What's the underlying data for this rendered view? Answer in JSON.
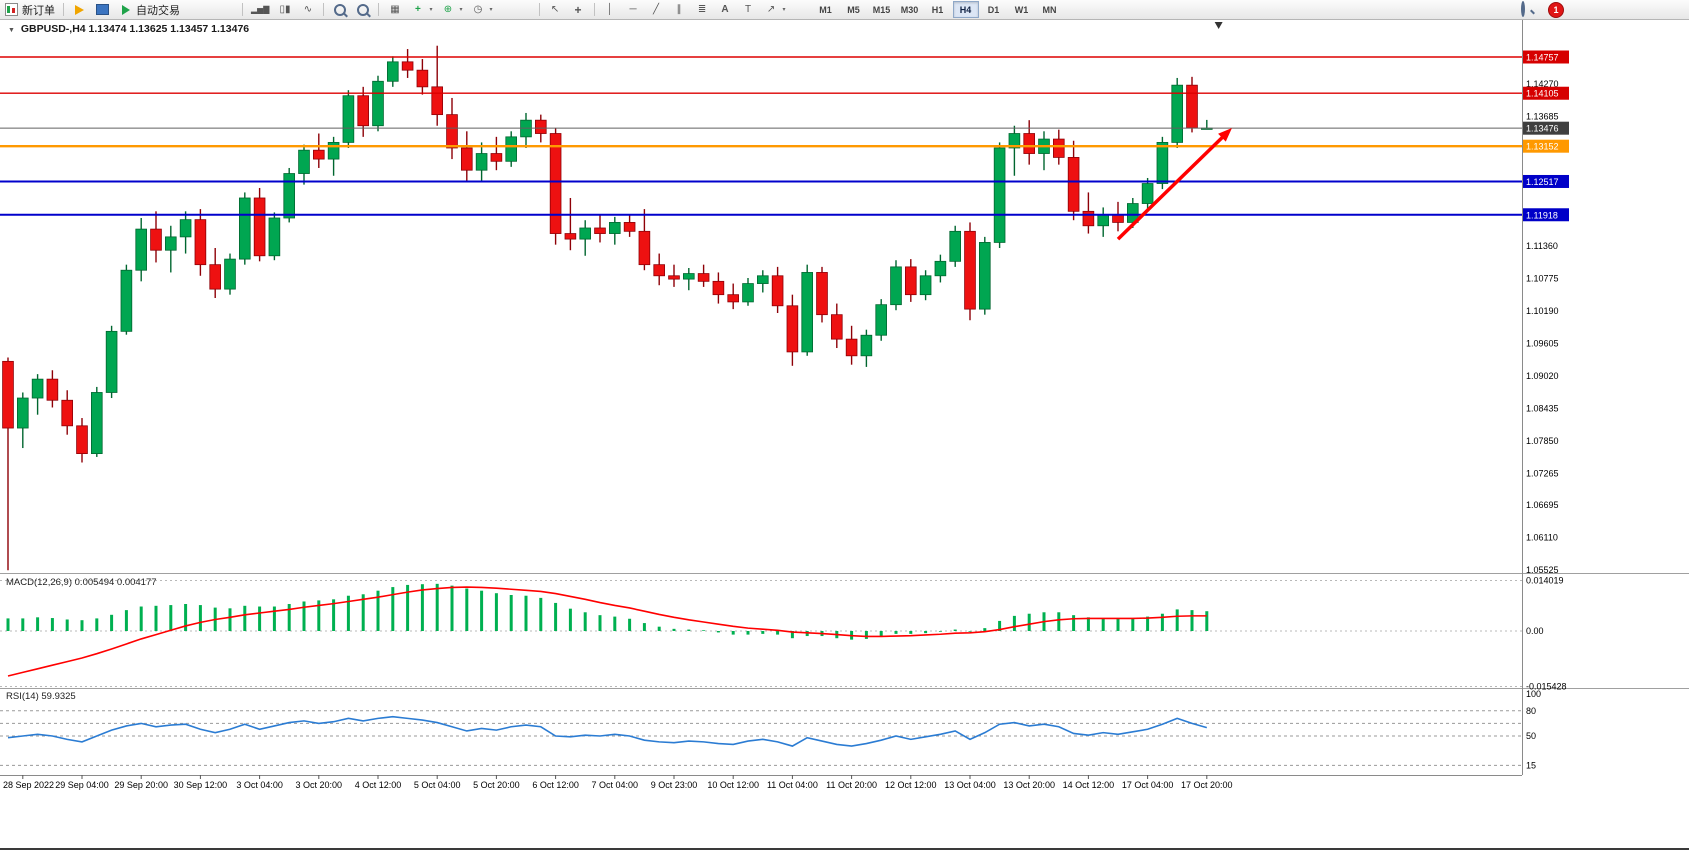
{
  "toolbar": {
    "new_order": "新订单",
    "auto_trading": "自动交易",
    "timeframes": [
      "M1",
      "M5",
      "M15",
      "M30",
      "H1",
      "H4",
      "D1",
      "W1",
      "MN"
    ],
    "active_timeframe": "H4",
    "notification_count": "1",
    "glyphs": {
      "bars": "▂▅▇",
      "candles": "▯▮",
      "line_chart": "∿",
      "tile": "▦",
      "indicator_add": "+",
      "objects_add": "⊕",
      "clock": "◷",
      "cursor": "↖",
      "crosshair": "+",
      "vline": "│",
      "hline": "─",
      "trendline": "╱",
      "channel": "∥",
      "fibonacci": "≣",
      "text_tool": "A",
      "label_tool": "T",
      "arrows_tool": "↗",
      "caret": "▾",
      "collapse": "▼"
    }
  },
  "chart": {
    "symbol_title": "GBPUSD-,H4",
    "ohlc": "1.13474 1.13625 1.13457 1.13476"
  },
  "macd_panel": {
    "label": "MACD(12,26,9)",
    "value_main": "0.005494",
    "value_signal": "0.004177"
  },
  "rsi_panel": {
    "label": "RSI(14)",
    "value": "59.9325"
  },
  "chart_data": {
    "type": "candlestick",
    "symbol": "GBPUSD",
    "timeframe": "H4",
    "colors": {
      "up": "#00a651",
      "up_border": "#00662f",
      "down": "#ee1111",
      "down_border": "#8e0007",
      "macd_hist": "#00b050",
      "macd_signal": "#ff0000",
      "rsi_line": "#2b7cd3",
      "arrow": "#ff0000",
      "badge_red": "#d60000",
      "badge_black": "#3f3f3f",
      "badge_orange": "#ff9900",
      "badge_blue": "#0000c8"
    },
    "price_axis": {
      "ticks": [
        1.1427,
        1.13685,
        1.1136,
        1.10775,
        1.1019,
        1.09605,
        1.0902,
        1.08435,
        1.0785,
        1.07265,
        1.06695,
        1.0611,
        1.05525
      ],
      "badges": [
        {
          "price": 1.14757,
          "color": "#d60000"
        },
        {
          "price": 1.14105,
          "color": "#d60000"
        },
        {
          "price": 1.13476,
          "color": "#3f3f3f"
        },
        {
          "price": 1.13152,
          "color": "#ff9900"
        },
        {
          "price": 1.12517,
          "color": "#0000c8"
        },
        {
          "price": 1.11918,
          "color": "#0000c8"
        }
      ]
    },
    "hlines": [
      {
        "price": 1.14757,
        "color": "#dd0000",
        "width": 1.4
      },
      {
        "price": 1.14105,
        "color": "#dd0000",
        "width": 1.4
      },
      {
        "price": 1.13476,
        "color": "#606060",
        "width": 1
      },
      {
        "price": 1.13152,
        "color": "#ff9900",
        "width": 2.4
      },
      {
        "price": 1.12517,
        "color": "#0000cc",
        "width": 2
      },
      {
        "price": 1.11918,
        "color": "#0000cc",
        "width": 2
      }
    ],
    "time_labels": [
      {
        "bar": 1,
        "text": "28 Sep 2022"
      },
      {
        "bar": 5,
        "text": "29 Sep 04:00"
      },
      {
        "bar": 9,
        "text": "29 Sep 20:00"
      },
      {
        "bar": 13,
        "text": "30 Sep 12:00"
      },
      {
        "bar": 17,
        "text": "3 Oct 04:00"
      },
      {
        "bar": 21,
        "text": "3 Oct 20:00"
      },
      {
        "bar": 25,
        "text": "4 Oct 12:00"
      },
      {
        "bar": 29,
        "text": "5 Oct 04:00"
      },
      {
        "bar": 33,
        "text": "5 Oct 20:00"
      },
      {
        "bar": 37,
        "text": "6 Oct 12:00"
      },
      {
        "bar": 41,
        "text": "7 Oct 04:00"
      },
      {
        "bar": 45,
        "text": "9 Oct 23:00"
      },
      {
        "bar": 49,
        "text": "10 Oct 12:00"
      },
      {
        "bar": 53,
        "text": "11 Oct 04:00"
      },
      {
        "bar": 57,
        "text": "11 Oct 20:00"
      },
      {
        "bar": 61,
        "text": "12 Oct 12:00"
      },
      {
        "bar": 65,
        "text": "13 Oct 04:00"
      },
      {
        "bar": 69,
        "text": "13 Oct 20:00"
      },
      {
        "bar": 73,
        "text": "14 Oct 12:00"
      },
      {
        "bar": 77,
        "text": "17 Oct 04:00"
      },
      {
        "bar": 81,
        "text": "17 Oct 20:00"
      }
    ],
    "candles": [
      [
        1.0928,
        1.0935,
        1.0552,
        1.0808
      ],
      [
        1.0808,
        1.0872,
        1.0772,
        1.0862
      ],
      [
        1.0862,
        1.0905,
        1.0832,
        1.0896
      ],
      [
        1.0896,
        1.0912,
        1.0845,
        1.0858
      ],
      [
        1.0858,
        1.0876,
        1.0796,
        1.0812
      ],
      [
        1.0812,
        1.0826,
        1.0746,
        1.0762
      ],
      [
        1.0762,
        1.0882,
        1.0756,
        1.0872
      ],
      [
        1.0872,
        1.0992,
        1.0862,
        1.0982
      ],
      [
        1.0982,
        1.1102,
        1.0976,
        1.1092
      ],
      [
        1.1092,
        1.1186,
        1.1072,
        1.1166
      ],
      [
        1.1166,
        1.1198,
        1.1106,
        1.1128
      ],
      [
        1.1128,
        1.1172,
        1.1088,
        1.1152
      ],
      [
        1.1152,
        1.1198,
        1.1122,
        1.1183
      ],
      [
        1.1183,
        1.1202,
        1.1082,
        1.1102
      ],
      [
        1.1102,
        1.1132,
        1.1042,
        1.1058
      ],
      [
        1.1058,
        1.1122,
        1.1048,
        1.1112
      ],
      [
        1.1112,
        1.1232,
        1.1102,
        1.1222
      ],
      [
        1.1222,
        1.124,
        1.1108,
        1.1118
      ],
      [
        1.1118,
        1.1196,
        1.111,
        1.1186
      ],
      [
        1.1186,
        1.1276,
        1.1178,
        1.1266
      ],
      [
        1.1266,
        1.1318,
        1.1246,
        1.1308
      ],
      [
        1.1308,
        1.1338,
        1.1276,
        1.1292
      ],
      [
        1.1292,
        1.1332,
        1.1262,
        1.1322
      ],
      [
        1.1322,
        1.1416,
        1.1312,
        1.1406
      ],
      [
        1.1406,
        1.1422,
        1.1332,
        1.1352
      ],
      [
        1.1352,
        1.1442,
        1.1342,
        1.1432
      ],
      [
        1.1432,
        1.1477,
        1.1422,
        1.1467
      ],
      [
        1.1467,
        1.149,
        1.1438,
        1.1452
      ],
      [
        1.1452,
        1.1472,
        1.1408,
        1.1422
      ],
      [
        1.1422,
        1.1496,
        1.1352,
        1.1372
      ],
      [
        1.1372,
        1.1402,
        1.1292,
        1.1312
      ],
      [
        1.1312,
        1.1342,
        1.1252,
        1.1272
      ],
      [
        1.1272,
        1.1322,
        1.1252,
        1.1302
      ],
      [
        1.1302,
        1.1332,
        1.1272,
        1.1288
      ],
      [
        1.1288,
        1.1342,
        1.1278,
        1.1332
      ],
      [
        1.1332,
        1.1375,
        1.1312,
        1.1362
      ],
      [
        1.1362,
        1.1372,
        1.1322,
        1.1338
      ],
      [
        1.1338,
        1.1348,
        1.1138,
        1.1158
      ],
      [
        1.1158,
        1.1222,
        1.1128,
        1.1148
      ],
      [
        1.1148,
        1.1182,
        1.1118,
        1.1168
      ],
      [
        1.1168,
        1.1192,
        1.1142,
        1.1158
      ],
      [
        1.1158,
        1.1188,
        1.1138,
        1.1178
      ],
      [
        1.1178,
        1.1192,
        1.1152,
        1.1162
      ],
      [
        1.1162,
        1.1202,
        1.1092,
        1.1102
      ],
      [
        1.1102,
        1.1122,
        1.1065,
        1.1082
      ],
      [
        1.1082,
        1.1102,
        1.1062,
        1.1076
      ],
      [
        1.1076,
        1.1096,
        1.1056,
        1.1086
      ],
      [
        1.1086,
        1.1102,
        1.1062,
        1.1072
      ],
      [
        1.1072,
        1.1088,
        1.1032,
        1.1048
      ],
      [
        1.1048,
        1.1068,
        1.1022,
        1.1035
      ],
      [
        1.1035,
        1.1078,
        1.1028,
        1.1068
      ],
      [
        1.1068,
        1.1092,
        1.1052,
        1.1082
      ],
      [
        1.1082,
        1.1098,
        1.1015,
        1.1028
      ],
      [
        1.1028,
        1.1048,
        1.092,
        1.0945
      ],
      [
        1.0945,
        1.1102,
        1.0938,
        1.1088
      ],
      [
        1.1088,
        1.1098,
        1.0998,
        1.1012
      ],
      [
        1.1012,
        1.1032,
        1.0952,
        1.0968
      ],
      [
        1.0968,
        1.0992,
        1.0922,
        1.0938
      ],
      [
        1.0938,
        1.0985,
        1.0918,
        1.0975
      ],
      [
        1.0975,
        1.104,
        1.0965,
        1.103
      ],
      [
        1.103,
        1.111,
        1.102,
        1.1098
      ],
      [
        1.1098,
        1.1112,
        1.1035,
        1.1048
      ],
      [
        1.1048,
        1.1092,
        1.1038,
        1.1082
      ],
      [
        1.1082,
        1.112,
        1.107,
        1.1108
      ],
      [
        1.1108,
        1.1172,
        1.1098,
        1.1162
      ],
      [
        1.1162,
        1.1178,
        1.1002,
        1.1022
      ],
      [
        1.1022,
        1.1152,
        1.1012,
        1.1142
      ],
      [
        1.1142,
        1.1322,
        1.1132,
        1.1312
      ],
      [
        1.1312,
        1.1352,
        1.1262,
        1.1338
      ],
      [
        1.1338,
        1.1362,
        1.1282,
        1.1302
      ],
      [
        1.1302,
        1.1342,
        1.1272,
        1.1328
      ],
      [
        1.1328,
        1.1345,
        1.1282,
        1.1295
      ],
      [
        1.1295,
        1.1325,
        1.1182,
        1.1198
      ],
      [
        1.1198,
        1.1232,
        1.1158,
        1.1172
      ],
      [
        1.1172,
        1.1205,
        1.1152,
        1.1192
      ],
      [
        1.1192,
        1.1215,
        1.1162,
        1.1178
      ],
      [
        1.1178,
        1.1222,
        1.1168,
        1.1212
      ],
      [
        1.1212,
        1.1258,
        1.1202,
        1.1248
      ],
      [
        1.1248,
        1.1332,
        1.1238,
        1.1322
      ],
      [
        1.1322,
        1.1438,
        1.1312,
        1.1425
      ],
      [
        1.1425,
        1.144,
        1.134,
        1.1348
      ],
      [
        1.13474,
        1.13625,
        1.13457,
        1.13476
      ]
    ],
    "macd": {
      "scale": [
        {
          "value": 0.014019,
          "label": "0.014019"
        },
        {
          "value": 0,
          "label": "0.00"
        },
        {
          "value": -0.015428,
          "label": "-0.015428"
        }
      ],
      "histogram": [
        0.0035,
        0.0035,
        0.0038,
        0.0036,
        0.0032,
        0.003,
        0.0035,
        0.0045,
        0.0058,
        0.0068,
        0.007,
        0.0072,
        0.0075,
        0.0072,
        0.0065,
        0.0063,
        0.007,
        0.0068,
        0.0068,
        0.0075,
        0.0082,
        0.0085,
        0.0088,
        0.0098,
        0.0102,
        0.0112,
        0.0122,
        0.0128,
        0.013,
        0.0131,
        0.0126,
        0.0118,
        0.0112,
        0.0105,
        0.01,
        0.0098,
        0.0092,
        0.0078,
        0.0062,
        0.0052,
        0.0044,
        0.004,
        0.0034,
        0.0022,
        0.0012,
        0.0006,
        0.0004,
        0.0002,
        -0.0004,
        -0.001,
        -0.001,
        -0.0008,
        -0.001,
        -0.002,
        -0.0014,
        -0.0014,
        -0.002,
        -0.0024,
        -0.0022,
        -0.0016,
        -0.0008,
        -0.0008,
        -0.0006,
        -0.0002,
        0.0004,
        -0.0002,
        0.0008,
        0.0028,
        0.0042,
        0.0048,
        0.0052,
        0.0052,
        0.0044,
        0.0038,
        0.0036,
        0.0034,
        0.0036,
        0.004,
        0.0048,
        0.006,
        0.0058,
        0.0055
      ],
      "signal": [
        -0.0125,
        -0.0115,
        -0.0105,
        -0.0095,
        -0.0085,
        -0.0075,
        -0.0063,
        -0.005,
        -0.0036,
        -0.0022,
        -0.001,
        0.0002,
        0.0014,
        0.0024,
        0.0032,
        0.0038,
        0.0045,
        0.005,
        0.0055,
        0.006,
        0.0066,
        0.0071,
        0.0076,
        0.0082,
        0.0088,
        0.0094,
        0.0101,
        0.0108,
        0.0114,
        0.0118,
        0.0121,
        0.0122,
        0.0121,
        0.0119,
        0.0116,
        0.0113,
        0.011,
        0.0104,
        0.0096,
        0.0088,
        0.0079,
        0.0071,
        0.0064,
        0.0055,
        0.0046,
        0.0038,
        0.0031,
        0.0025,
        0.0019,
        0.0013,
        0.0008,
        0.0005,
        0.0002,
        -0.0003,
        -0.0005,
        -0.0007,
        -0.001,
        -0.0013,
        -0.0015,
        -0.0015,
        -0.0014,
        -0.0013,
        -0.0011,
        -0.0009,
        -0.0006,
        -0.0005,
        -0.0002,
        0.0004,
        0.0012,
        0.0019,
        0.0026,
        0.0031,
        0.0034,
        0.0035,
        0.0035,
        0.0035,
        0.0035,
        0.0036,
        0.0038,
        0.0041,
        0.0042,
        0.0042
      ]
    },
    "rsi": {
      "axis_labels": [
        {
          "value": 100,
          "label": "100"
        },
        {
          "value": 80,
          "label": "80"
        },
        {
          "value": 50,
          "label": "50"
        },
        {
          "value": 15,
          "label": "15"
        }
      ],
      "dashed_levels": [
        80,
        65,
        50,
        15
      ],
      "values": [
        48,
        50,
        52,
        50,
        46,
        43,
        50,
        57,
        62,
        65,
        61,
        63,
        64,
        58,
        54,
        58,
        64,
        58,
        62,
        66,
        68,
        65,
        67,
        71,
        68,
        71,
        73,
        71,
        69,
        66,
        61,
        56,
        59,
        57,
        61,
        63,
        61,
        50,
        49,
        51,
        50,
        52,
        50,
        45,
        43,
        42,
        44,
        43,
        41,
        40,
        44,
        46,
        43,
        38,
        48,
        44,
        40,
        38,
        41,
        45,
        50,
        46,
        49,
        52,
        56,
        46,
        54,
        64,
        66,
        62,
        64,
        61,
        53,
        51,
        54,
        52,
        55,
        58,
        64,
        71,
        65,
        59.93
      ]
    },
    "arrow": {
      "from": {
        "bar": 75,
        "price": 1.1148
      },
      "to": {
        "bar": 82.7,
        "price": 1.1348
      }
    },
    "shift_marker_bar": 81.8
  }
}
